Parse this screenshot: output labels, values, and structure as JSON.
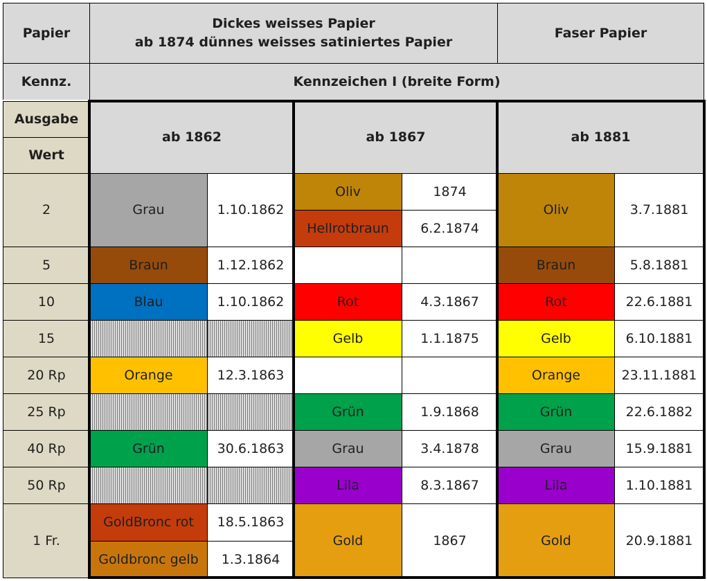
{
  "header": {
    "papier_label": "Papier",
    "papier_line1": "Dickes weisses Papier",
    "papier_line2": "ab 1874 dünnes weisses satiniertes Papier",
    "faser": "Faser Papier",
    "kennz_label": "Kennz.",
    "kennz_value": "Kennzeichen I (breite Form)",
    "ausgabe_label": "Ausgabe",
    "wert_label": "Wert",
    "issue_1862": "ab 1862",
    "issue_1867": "ab 1867",
    "issue_1881": "ab 1881"
  },
  "colors": {
    "grau": "#a6a6a6",
    "braun": "#964b0b",
    "blau": "#0070c0",
    "orange": "#ffc000",
    "gruen": "#00a14b",
    "rot": "#ff0000",
    "gelb": "#ffff00",
    "oliv": "#bf8508",
    "hellrotbraun": "#c43c0c",
    "lila": "#9900cc",
    "gold": "#e49e10",
    "goldbronc_rot": "#c43c0c",
    "goldbronc_gelb": "#c8760c"
  },
  "rows": [
    {
      "wert": "2",
      "c1862": [
        {
          "color": "Grau",
          "date": "1.10.1862"
        }
      ],
      "c1867": [
        {
          "color": "Oliv",
          "date": "1874"
        },
        {
          "color": "Hellrotbraun",
          "date": "6.2.1874"
        }
      ],
      "c1881": [
        {
          "color": "Oliv",
          "date": "3.7.1881"
        }
      ]
    },
    {
      "wert": "5",
      "c1862": [
        {
          "color": "Braun",
          "date": "1.12.1862"
        }
      ],
      "c1867": [
        {
          "color": "",
          "date": ""
        }
      ],
      "c1881": [
        {
          "color": "Braun",
          "date": "5.8.1881"
        }
      ]
    },
    {
      "wert": "10",
      "c1862": [
        {
          "color": "Blau",
          "date": "1.10.1862"
        }
      ],
      "c1867": [
        {
          "color": "Rot",
          "date": "4.3.1867"
        }
      ],
      "c1881": [
        {
          "color": "Rot",
          "date": "22.6.1881"
        }
      ]
    },
    {
      "wert": "15",
      "c1862": [
        {
          "color": "",
          "date": ""
        }
      ],
      "c1867": [
        {
          "color": "Gelb",
          "date": "1.1.1875"
        }
      ],
      "c1881": [
        {
          "color": "Gelb",
          "date": "6.10.1881"
        }
      ]
    },
    {
      "wert": "20 Rp",
      "c1862": [
        {
          "color": "Orange",
          "date": "12.3.1863"
        }
      ],
      "c1867": [
        {
          "color": "",
          "date": ""
        }
      ],
      "c1881": [
        {
          "color": "Orange",
          "date": "23.11.1881"
        }
      ]
    },
    {
      "wert": "25 Rp",
      "c1862": [
        {
          "color": "",
          "date": ""
        }
      ],
      "c1867": [
        {
          "color": "Grün",
          "date": "1.9.1868"
        }
      ],
      "c1881": [
        {
          "color": "Grün",
          "date": "22.6.1882"
        }
      ]
    },
    {
      "wert": "40 Rp",
      "c1862": [
        {
          "color": "Grün",
          "date": "30.6.1863"
        }
      ],
      "c1867": [
        {
          "color": "Grau",
          "date": "3.4.1878"
        }
      ],
      "c1881": [
        {
          "color": "Grau",
          "date": "15.9.1881"
        }
      ]
    },
    {
      "wert": "50 Rp",
      "c1862": [
        {
          "color": "",
          "date": ""
        }
      ],
      "c1867": [
        {
          "color": "Lila",
          "date": "8.3.1867"
        }
      ],
      "c1881": [
        {
          "color": "Lila",
          "date": "1.10.1881"
        }
      ]
    },
    {
      "wert": "1 Fr.",
      "c1862": [
        {
          "color": "GoldBronc rot",
          "date": "18.5.1863"
        },
        {
          "color": "Goldbronc gelb",
          "date": "1.3.1864"
        }
      ],
      "c1867": [
        {
          "color": "Gold",
          "date": "1867"
        }
      ],
      "c1881": [
        {
          "color": "Gold",
          "date": "20.9.1881"
        }
      ]
    }
  ]
}
